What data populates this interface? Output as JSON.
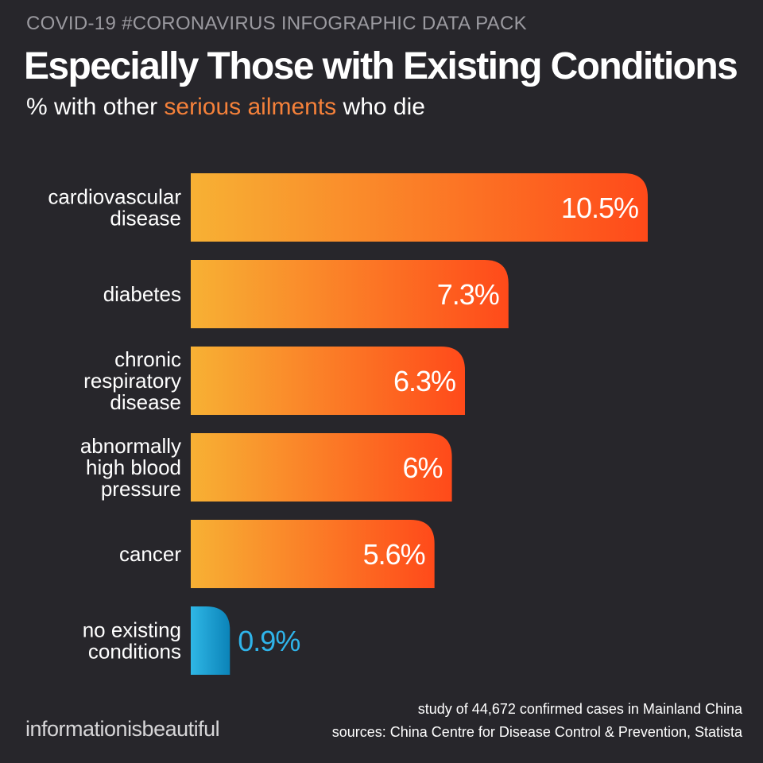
{
  "header": {
    "kicker": "COVID-19 #CORONAVIRUS INFOGRAPHIC DATA PACK",
    "title": "Especially Those with Existing Conditions",
    "subtitle_before": "% with other ",
    "subtitle_accent": "serious ailments",
    "subtitle_after": " who die"
  },
  "colors": {
    "background": "#27262b",
    "accent": "#f5813a",
    "bar_gradient_start": "#f7b134",
    "bar_gradient_end": "#ff4a1a",
    "highlight_gradient_start": "#2fb7e6",
    "highlight_gradient_end": "#0b83b8",
    "highlight_text": "#2fb4ea"
  },
  "chart_data": {
    "type": "bar",
    "orientation": "horizontal",
    "categories": [
      "cardiovascular disease",
      "diabetes",
      "chronic respiratory disease",
      "abnormally high blood pressure",
      "cancer",
      "no existing conditions"
    ],
    "category_lines": [
      [
        "cardiovascular",
        "disease"
      ],
      [
        "diabetes"
      ],
      [
        "chronic",
        "respiratory",
        "disease"
      ],
      [
        "abnormally",
        "high blood",
        "pressure"
      ],
      [
        "cancer"
      ],
      [
        "no existing",
        "conditions"
      ]
    ],
    "values": [
      10.5,
      7.3,
      6.3,
      6,
      5.6,
      0.9
    ],
    "value_labels": [
      "10.5%",
      "7.3%",
      "6.3%",
      "6%",
      "5.6%",
      "0.9%"
    ],
    "highlight": [
      false,
      false,
      false,
      false,
      false,
      true
    ],
    "xlabel": "",
    "ylabel": "",
    "unit": "%"
  },
  "footer": {
    "brand": "informationisbeautiful",
    "note_line1": "study of 44,672 confirmed cases in Mainland China",
    "note_line2": "sources: China Centre for Disease Control & Prevention, Statista"
  }
}
